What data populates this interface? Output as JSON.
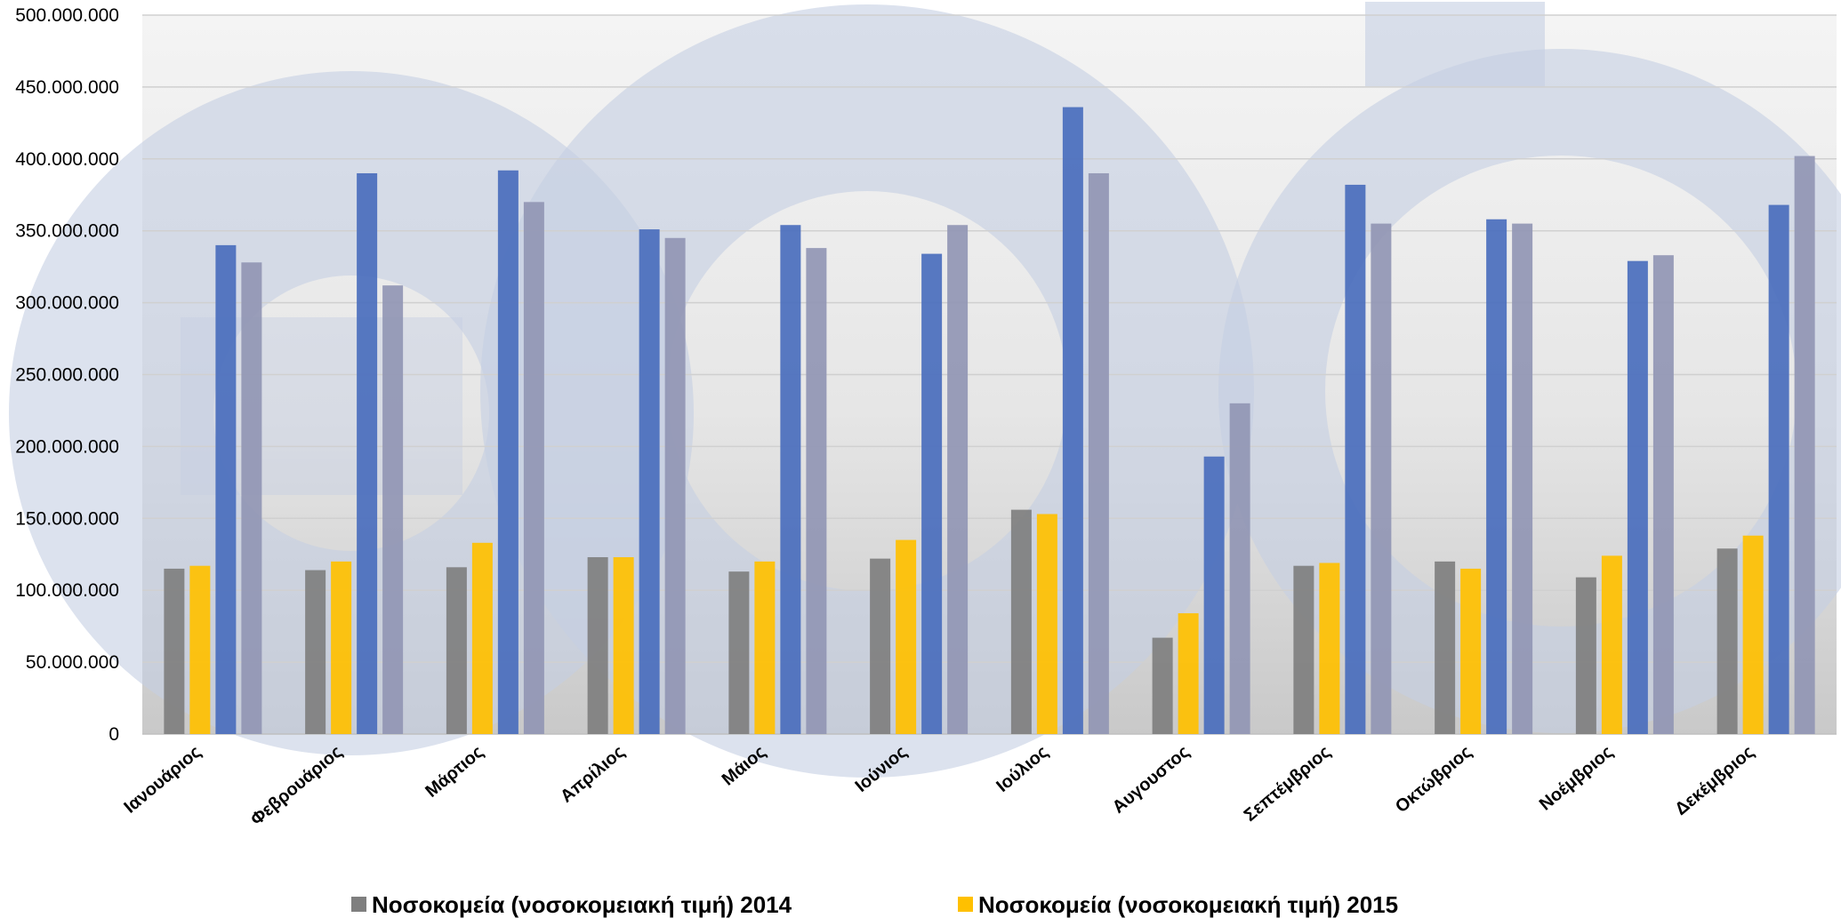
{
  "chart_data": {
    "type": "bar",
    "title": "",
    "xlabel": "",
    "ylabel": "",
    "ylim": [
      0,
      500000000
    ],
    "yticks": [
      0,
      50000000,
      100000000,
      150000000,
      200000000,
      250000000,
      300000000,
      350000000,
      400000000,
      450000000,
      500000000
    ],
    "ytick_labels": [
      "0",
      "50.000.000",
      "100.000.000",
      "150.000.000",
      "200.000.000",
      "250.000.000",
      "300.000.000",
      "350.000.000",
      "400.000.000",
      "450.000.000",
      "500.000.000"
    ],
    "grid": true,
    "legend_position": "bottom",
    "categories": [
      "Ιανουάριος",
      "Φεβρουάριος",
      "Μάρτιος",
      "Απρίλιος",
      "Μάιος",
      "Ιούνιος",
      "Ιούλιος",
      "Αυγουστος",
      "Σεπτέμβριος",
      "Οκτώβριος",
      "Νοέμβριος",
      "Δεκέμβριος"
    ],
    "series": [
      {
        "name": "Νοσοκομεία  (νοσοκομειακή τιμή) 2014",
        "color": "#7f7f7f",
        "values": [
          115000000,
          114000000,
          116000000,
          123000000,
          113000000,
          122000000,
          156000000,
          67000000,
          117000000,
          120000000,
          109000000,
          129000000
        ]
      },
      {
        "name": "Νοσοκομεία  (νοσοκομειακή τιμή) 2015",
        "color": "#ffc000",
        "values": [
          117000000,
          120000000,
          133000000,
          123000000,
          120000000,
          135000000,
          153000000,
          84000000,
          119000000,
          115000000,
          124000000,
          138000000
        ]
      },
      {
        "name": "",
        "color": "#4a6ebd",
        "values": [
          340000000,
          390000000,
          392000000,
          351000000,
          354000000,
          334000000,
          436000000,
          193000000,
          382000000,
          358000000,
          329000000,
          368000000
        ]
      },
      {
        "name": "",
        "color": "#9196b4",
        "values": [
          328000000,
          312000000,
          370000000,
          345000000,
          338000000,
          354000000,
          390000000,
          230000000,
          355000000,
          355000000,
          333000000,
          402000000
        ]
      }
    ]
  },
  "watermark": {
    "description": "watermark",
    "color": "#c5cee3"
  }
}
